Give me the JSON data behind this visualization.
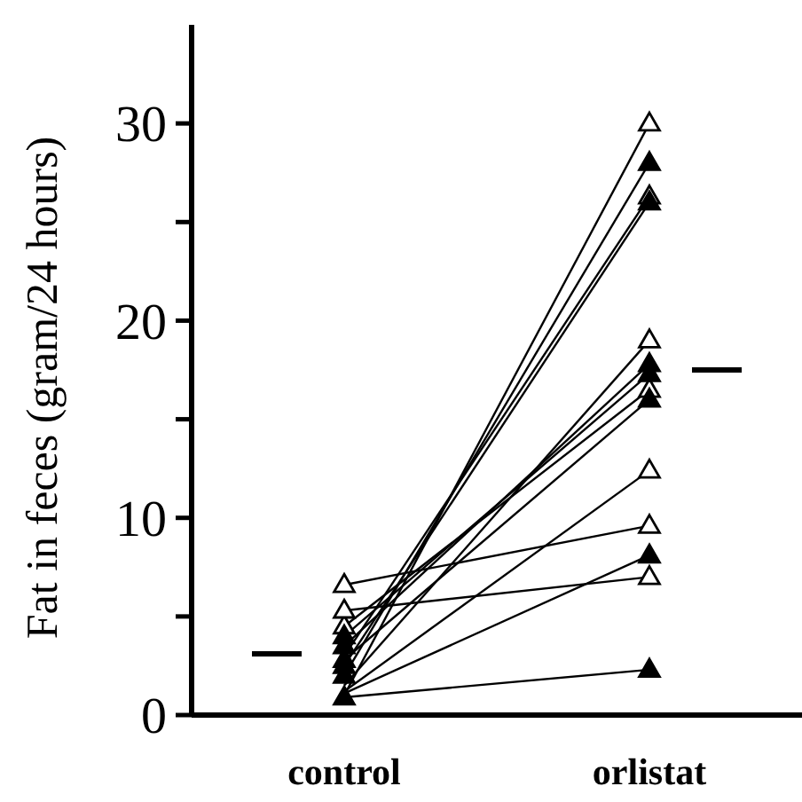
{
  "chart_data": {
    "type": "line",
    "ylabel": "Fat in feces (gram/24 hours)",
    "categories": [
      "control",
      "orlistat"
    ],
    "ylim": [
      0,
      35
    ],
    "yticks": [
      0,
      {
        "value": 5,
        "label": null
      },
      10,
      {
        "value": 15,
        "label": null
      },
      20,
      {
        "value": 25,
        "label": null
      },
      30
    ],
    "series": [
      {
        "color": "#000000",
        "values": [
          1.0,
          30
        ]
      },
      {
        "color": "#000000",
        "values": [
          2.0,
          28
        ]
      },
      {
        "color": "#000000",
        "values": [
          3.0,
          26.3
        ]
      },
      {
        "color": "#000000",
        "values": [
          2.5,
          26
        ]
      },
      {
        "color": "#000000",
        "values": [
          1.5,
          19
        ]
      },
      {
        "color": "#000000",
        "values": [
          3.5,
          17.8
        ]
      },
      {
        "color": "#000000",
        "values": [
          4.0,
          17.3
        ]
      },
      {
        "color": "#000000",
        "values": [
          4.5,
          16.5
        ]
      },
      {
        "color": "#000000",
        "values": [
          2.8,
          16.0
        ]
      },
      {
        "color": "#000000",
        "values": [
          1.2,
          12.4
        ]
      },
      {
        "color": "#000000",
        "values": [
          6.6,
          9.6
        ]
      },
      {
        "color": "#000000",
        "values": [
          1.1,
          8.1
        ]
      },
      {
        "color": "#000000",
        "values": [
          5.3,
          7.0
        ]
      },
      {
        "color": "#000000",
        "values": [
          0.9,
          2.3
        ]
      },
      {
        "type": "scatter",
        "marker": "triangle",
        "color": "#ffffff",
        "x": [
          "control",
          "control",
          "control",
          "control",
          "control",
          "control",
          "control",
          "orlistat",
          "orlistat",
          "orlistat",
          "orlistat",
          "orlistat",
          "orlistat",
          "orlistat"
        ],
        "values": [
          null,
          null,
          null,
          4.5,
          null,
          6.6,
          5.3,
          30,
          26.3,
          19,
          16.5,
          12.4,
          9.6,
          7.0
        ]
      },
      {
        "type": "scatter",
        "marker": "triangle",
        "color": "#000000",
        "x": [
          "control",
          "control",
          "control",
          "control",
          "control",
          "control",
          "control",
          "orlistat",
          "orlistat",
          "orlistat",
          "orlistat",
          "orlistat",
          "orlistat",
          "orlistat"
        ],
        "values": [
          2.0,
          2.5,
          3.5,
          4.0,
          2.8,
          null,
          0.9,
          28,
          26,
          17.8,
          17.3,
          16.0,
          8.1,
          2.3
        ]
      }
    ],
    "ref_lines": [
      {
        "axis": "y",
        "value": 3.1,
        "color": "#000000"
      },
      {
        "axis": "y",
        "value": 17.5,
        "color": "#000000"
      }
    ]
  }
}
